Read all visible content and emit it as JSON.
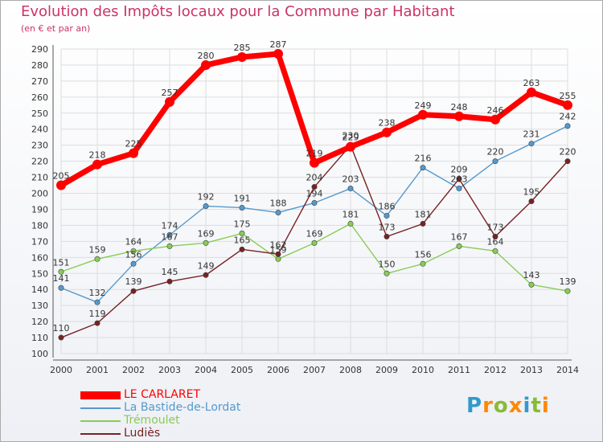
{
  "chart_data": {
    "type": "line",
    "title": "Evolution des Impôts locaux pour la Commune par Habitant",
    "subtitle": "(en € et par an)",
    "xlabel": "",
    "ylabel": "",
    "x": [
      "2000",
      "2001",
      "2002",
      "2003",
      "2004",
      "2005",
      "2006",
      "2007",
      "2008",
      "2009",
      "2010",
      "2011",
      "2012",
      "2013",
      "2014"
    ],
    "ylim": [
      100,
      290
    ],
    "yticks": [
      100,
      110,
      120,
      130,
      140,
      150,
      160,
      170,
      180,
      190,
      200,
      210,
      220,
      230,
      240,
      250,
      260,
      270,
      280,
      290
    ],
    "grid": true,
    "legend_position": "bottom-left",
    "series": [
      {
        "name": "LE CARLARET",
        "color": "#ff0000",
        "values": [
          205,
          218,
          225,
          257,
          280,
          285,
          287,
          219,
          229,
          238,
          249,
          248,
          246,
          263,
          255
        ]
      },
      {
        "name": "La Bastide-de-Lordat",
        "color": "#5599cc",
        "values": [
          141,
          132,
          156,
          174,
          192,
          191,
          188,
          194,
          203,
          186,
          216,
          203,
          220,
          231,
          242
        ]
      },
      {
        "name": "Trémoulet",
        "color": "#88cc55",
        "values": [
          151,
          159,
          164,
          167,
          169,
          175,
          159,
          169,
          181,
          150,
          156,
          167,
          164,
          143,
          139
        ]
      },
      {
        "name": "Ludiès",
        "color": "#772222",
        "values": [
          110,
          119,
          139,
          145,
          149,
          165,
          162,
          204,
          230,
          173,
          181,
          209,
          173,
          195,
          220
        ]
      }
    ]
  },
  "logo": {
    "letters": [
      "P",
      "r",
      "o",
      "x",
      "i",
      "t",
      "i"
    ],
    "colors": [
      "#3399cc",
      "#ff8800",
      "#88bb33",
      "#ff8800",
      "#3399cc",
      "#88bb33",
      "#ff8800"
    ]
  }
}
